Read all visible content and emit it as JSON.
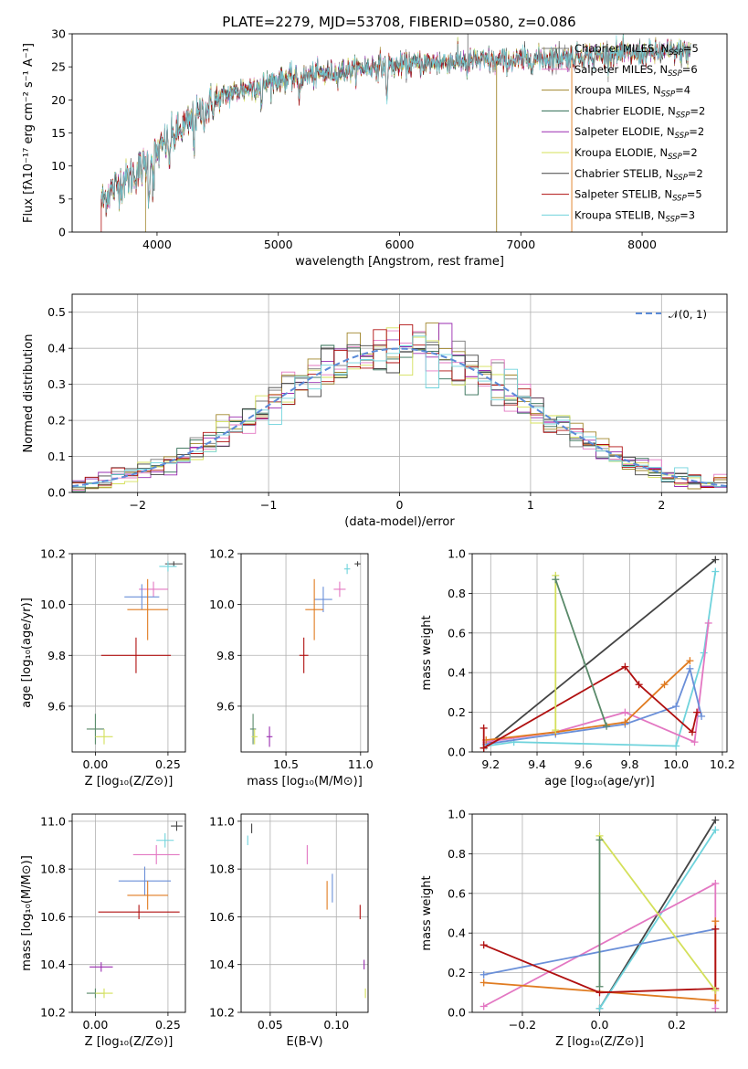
{
  "title": "PLATE=2279, MJD=53708, FIBERID=0580, z=0.086",
  "colors": [
    "#777777",
    "#e377c2",
    "#a0862b",
    "#2e6b52",
    "#9a2db0",
    "#d4e05a",
    "#444444",
    "#b01010",
    "#6fd3dc",
    "#6a8fd8",
    "#e07b20",
    "#5a8a6a"
  ],
  "chart_data": [
    {
      "id": "spectrum",
      "type": "line",
      "xlabel": "wavelength [Angstrom, rest frame]",
      "ylabel": "Flux [fλ10⁻¹⁷ erg cm⁻² s⁻¹ A⁻¹]",
      "xlim": [
        3300,
        8700
      ],
      "ylim": [
        0,
        30
      ],
      "xticks": [
        4000,
        5000,
        6000,
        7000,
        8000
      ],
      "yticks": [
        0,
        5,
        10,
        15,
        20,
        25,
        30
      ],
      "grid": false,
      "legend_position": "top-right",
      "continuum_x": [
        3540,
        3600,
        3700,
        3800,
        3900,
        4000,
        4100,
        4200,
        4300,
        4400,
        4500,
        4600,
        4700,
        4800,
        4900,
        5000,
        5200,
        5400,
        5600,
        5800,
        6000,
        6200,
        6400,
        6600,
        6800,
        7000,
        7200,
        7400,
        7600,
        7800,
        8000,
        8200,
        8400
      ],
      "continuum_y": [
        4.5,
        6,
        7.5,
        8.5,
        10,
        12,
        14,
        15.5,
        17,
        18.5,
        20,
        21,
        21.5,
        22,
        22.5,
        23,
        23.5,
        24,
        24.5,
        25,
        25.2,
        25.5,
        25.8,
        26,
        25.8,
        26,
        26.3,
        26.5,
        26.8,
        27,
        27,
        27.2,
        27.3
      ],
      "series": [
        {
          "name": "Chabrier MILES, N$_{SSP}$=5",
          "label": "Chabrier MILES, N",
          "sub": "SSP",
          "suffix": "=5",
          "color": "#777777"
        },
        {
          "name": "Salpeter MILES, N$_{SSP}$=6",
          "label": "Salpeter MILES, N",
          "sub": "SSP",
          "suffix": "=6",
          "color": "#e377c2"
        },
        {
          "name": "Kroupa MILES, N$_{SSP}$=4",
          "label": "Kroupa MILES, N",
          "sub": "SSP",
          "suffix": "=4",
          "color": "#a0862b"
        },
        {
          "name": "Chabrier ELODIE, N$_{SSP}$=2",
          "label": "Chabrier ELODIE, N",
          "sub": "SSP",
          "suffix": "=2",
          "color": "#2e6b52"
        },
        {
          "name": "Salpeter ELODIE, N$_{SSP}$=2",
          "label": "Salpeter ELODIE, N",
          "sub": "SSP",
          "suffix": "=2",
          "color": "#9a2db0"
        },
        {
          "name": "Kroupa ELODIE, N$_{SSP}$=2",
          "label": "Kroupa ELODIE, N",
          "sub": "SSP",
          "suffix": "=2",
          "color": "#d4e05a"
        },
        {
          "name": "Chabrier STELIB, N$_{SSP}$=2",
          "label": "Chabrier STELIB, N",
          "sub": "SSP",
          "suffix": "=2",
          "color": "#444444"
        },
        {
          "name": "Salpeter STELIB, N$_{SSP}$=5",
          "label": "Salpeter STELIB, N",
          "sub": "SSP",
          "suffix": "=5",
          "color": "#b01010"
        },
        {
          "name": "Kroupa STELIB, N$_{SSP}$=3",
          "label": "Kroupa STELIB, N",
          "sub": "SSP",
          "suffix": "=3",
          "color": "#6fd3dc"
        }
      ]
    },
    {
      "id": "residuals",
      "type": "line",
      "xlabel": "(data-model)/error",
      "ylabel": "Normed distribution",
      "xlim": [
        -2.5,
        2.5
      ],
      "ylim": [
        0,
        0.55
      ],
      "xticks": [
        -2,
        -1,
        0,
        1,
        2
      ],
      "yticks": [
        0.0,
        0.1,
        0.2,
        0.3,
        0.4,
        0.5
      ],
      "grid": true,
      "legend_position": "top-right",
      "legend": "𝒩(0, 1)",
      "normal_color": "#5b8bd8",
      "hist_colors": [
        "#777777",
        "#e377c2",
        "#a0862b",
        "#2e6b52",
        "#9a2db0",
        "#d4e05a",
        "#444444",
        "#b01010",
        "#6fd3dc"
      ]
    },
    {
      "id": "age-vs-Z",
      "type": "scatter",
      "xlabel": "Z [log₁₀(Z/Z⊙)]",
      "ylabel": "age  [log₁₀(age/yr)]",
      "xlim": [
        -0.08,
        0.31
      ],
      "ylim": [
        9.42,
        10.2
      ],
      "xticks": [
        0.0,
        0.25
      ],
      "yticks": [
        9.6,
        9.8,
        10.0,
        10.2
      ],
      "grid": true,
      "points": [
        {
          "x": 0.27,
          "y": 10.16,
          "xerr": 0.03,
          "yerr": 0.01,
          "color": "#444444"
        },
        {
          "x": 0.25,
          "y": 10.15,
          "xerr": 0.03,
          "yerr": 0.02,
          "color": "#6fd3dc"
        },
        {
          "x": 0.2,
          "y": 10.06,
          "xerr": 0.05,
          "yerr": 0.03,
          "color": "#e377c2"
        },
        {
          "x": 0.16,
          "y": 10.03,
          "xerr": 0.06,
          "yerr": 0.05,
          "color": "#6a8fd8"
        },
        {
          "x": 0.18,
          "y": 9.98,
          "xerr": 0.07,
          "yerr": 0.12,
          "color": "#e07b20"
        },
        {
          "x": 0.14,
          "y": 9.8,
          "xerr": 0.12,
          "yerr": 0.07,
          "color": "#b01010"
        },
        {
          "x": 0.0,
          "y": 9.51,
          "xerr": 0.03,
          "yerr": 0.06,
          "color": "#5a8a6a"
        },
        {
          "x": 0.03,
          "y": 9.48,
          "xerr": 0.03,
          "yerr": 0.03,
          "color": "#d4e05a"
        }
      ]
    },
    {
      "id": "age-vs-mass",
      "type": "scatter",
      "xlabel": "mass [log₁₀(M/M⊙)]",
      "ylabel": "",
      "xlim": [
        10.2,
        11.05
      ],
      "ylim": [
        9.42,
        10.2
      ],
      "xticks": [
        10.5,
        11.0
      ],
      "yticks": [
        9.6,
        9.8,
        10.0,
        10.2
      ],
      "grid": true,
      "points": [
        {
          "x": 10.98,
          "y": 10.16,
          "xerr": 0.02,
          "yerr": 0.01,
          "color": "#444444"
        },
        {
          "x": 10.91,
          "y": 10.14,
          "xerr": 0.02,
          "yerr": 0.02,
          "color": "#6fd3dc"
        },
        {
          "x": 10.86,
          "y": 10.06,
          "xerr": 0.04,
          "yerr": 0.03,
          "color": "#e377c2"
        },
        {
          "x": 10.75,
          "y": 10.02,
          "xerr": 0.06,
          "yerr": 0.05,
          "color": "#6a8fd8"
        },
        {
          "x": 10.69,
          "y": 9.98,
          "xerr": 0.06,
          "yerr": 0.12,
          "color": "#e07b20"
        },
        {
          "x": 10.62,
          "y": 9.8,
          "xerr": 0.03,
          "yerr": 0.07,
          "color": "#b01010"
        },
        {
          "x": 10.28,
          "y": 9.51,
          "xerr": 0.02,
          "yerr": 0.06,
          "color": "#5a8a6a"
        },
        {
          "x": 10.39,
          "y": 9.48,
          "xerr": 0.02,
          "yerr": 0.04,
          "color": "#9a2db0"
        },
        {
          "x": 10.29,
          "y": 9.48,
          "xerr": 0.02,
          "yerr": 0.03,
          "color": "#d4e05a"
        }
      ]
    },
    {
      "id": "weight-vs-age",
      "type": "line",
      "xlabel": "age  [log₁₀(age/yr)]",
      "ylabel": "mass weight",
      "xlim": [
        9.12,
        10.22
      ],
      "ylim": [
        0,
        1
      ],
      "xticks": [
        9.2,
        9.4,
        9.6,
        9.8,
        10.0,
        10.2
      ],
      "yticks": [
        0.0,
        0.2,
        0.4,
        0.6,
        0.8,
        1.0
      ],
      "grid": true,
      "series": [
        {
          "color": "#444444",
          "x": [
            9.17,
            10.17
          ],
          "y": [
            0.02,
            0.97
          ]
        },
        {
          "color": "#6fd3dc",
          "x": [
            9.18,
            9.3,
            10.0,
            10.12,
            10.17
          ],
          "y": [
            0.03,
            0.05,
            0.03,
            0.5,
            0.91
          ]
        },
        {
          "color": "#e377c2",
          "x": [
            9.18,
            9.48,
            9.78,
            10.08,
            10.14
          ],
          "y": [
            0.05,
            0.1,
            0.2,
            0.05,
            0.65
          ]
        },
        {
          "color": "#6a8fd8",
          "x": [
            9.18,
            9.48,
            9.78,
            10.0,
            10.06,
            10.11
          ],
          "y": [
            0.04,
            0.09,
            0.14,
            0.23,
            0.42,
            0.18
          ]
        },
        {
          "color": "#e07b20",
          "x": [
            9.18,
            9.48,
            9.78,
            9.95,
            10.06
          ],
          "y": [
            0.06,
            0.1,
            0.15,
            0.34,
            0.46
          ]
        },
        {
          "color": "#b01010",
          "x": [
            9.17,
            9.17,
            9.78,
            9.84,
            10.07,
            10.09
          ],
          "y": [
            0.12,
            0.02,
            0.43,
            0.34,
            0.1,
            0.2
          ]
        },
        {
          "color": "#d4e05a",
          "x": [
            9.48,
            9.48
          ],
          "y": [
            0.11,
            0.89
          ]
        },
        {
          "color": "#5a8a6a",
          "x": [
            9.48,
            9.7
          ],
          "y": [
            0.87,
            0.13
          ]
        }
      ]
    },
    {
      "id": "mass-vs-Z",
      "type": "scatter",
      "xlabel": "Z [log₁₀(Z/Z⊙)]",
      "ylabel": "mass [log₁₀(M/M⊙)]",
      "xlim": [
        -0.08,
        0.31
      ],
      "ylim": [
        10.2,
        11.03
      ],
      "xticks": [
        0.0,
        0.25
      ],
      "yticks": [
        10.2,
        10.4,
        10.6,
        10.8,
        11.0
      ],
      "grid": true,
      "points": [
        {
          "x": 0.28,
          "y": 10.98,
          "xerr": 0.02,
          "yerr": 0.02,
          "color": "#444444"
        },
        {
          "x": 0.24,
          "y": 10.92,
          "xerr": 0.03,
          "yerr": 0.03,
          "color": "#6fd3dc"
        },
        {
          "x": 0.21,
          "y": 10.86,
          "xerr": 0.08,
          "yerr": 0.04,
          "color": "#e377c2"
        },
        {
          "x": 0.17,
          "y": 10.75,
          "xerr": 0.09,
          "yerr": 0.06,
          "color": "#6a8fd8"
        },
        {
          "x": 0.18,
          "y": 10.69,
          "xerr": 0.07,
          "yerr": 0.06,
          "color": "#e07b20"
        },
        {
          "x": 0.15,
          "y": 10.62,
          "xerr": 0.14,
          "yerr": 0.03,
          "color": "#b01010"
        },
        {
          "x": 0.02,
          "y": 10.39,
          "xerr": 0.04,
          "yerr": 0.02,
          "color": "#9a2db0"
        },
        {
          "x": 0.0,
          "y": 10.28,
          "xerr": 0.03,
          "yerr": 0.02,
          "color": "#5a8a6a"
        },
        {
          "x": 0.03,
          "y": 10.28,
          "xerr": 0.03,
          "yerr": 0.02,
          "color": "#d4e05a"
        }
      ]
    },
    {
      "id": "mass-vs-EBV",
      "type": "scatter",
      "xlabel": "E(B-V)",
      "ylabel": "",
      "xlim": [
        0.028,
        0.124
      ],
      "ylim": [
        10.2,
        11.03
      ],
      "xticks": [
        0.05,
        0.1
      ],
      "yticks": [
        10.2,
        10.4,
        10.6,
        10.8,
        11.0
      ],
      "grid": true,
      "points": [
        {
          "x": 0.036,
          "y": 10.97,
          "xerr": 0.0,
          "yerr": 0.02,
          "color": "#444444"
        },
        {
          "x": 0.033,
          "y": 10.92,
          "xerr": 0.0,
          "yerr": 0.02,
          "color": "#6fd3dc"
        },
        {
          "x": 0.078,
          "y": 10.86,
          "xerr": 0.0,
          "yerr": 0.04,
          "color": "#e377c2"
        },
        {
          "x": 0.097,
          "y": 10.72,
          "xerr": 0.0,
          "yerr": 0.06,
          "color": "#6a8fd8"
        },
        {
          "x": 0.093,
          "y": 10.69,
          "xerr": 0.0,
          "yerr": 0.06,
          "color": "#e07b20"
        },
        {
          "x": 0.118,
          "y": 10.62,
          "xerr": 0.0,
          "yerr": 0.03,
          "color": "#b01010"
        },
        {
          "x": 0.121,
          "y": 10.4,
          "xerr": 0.0,
          "yerr": 0.02,
          "color": "#9a2db0"
        },
        {
          "x": 0.122,
          "y": 10.28,
          "xerr": 0.0,
          "yerr": 0.02,
          "color": "#d4e05a"
        }
      ]
    },
    {
      "id": "weight-vs-Z",
      "type": "line",
      "xlabel": "Z [log₁₀(Z/Z⊙)]",
      "ylabel": "mass weight",
      "xlim": [
        -0.33,
        0.33
      ],
      "ylim": [
        0,
        1
      ],
      "xticks": [
        -0.2,
        0.0,
        0.2
      ],
      "yticks": [
        0.0,
        0.2,
        0.4,
        0.6,
        0.8,
        1.0
      ],
      "grid": true,
      "series": [
        {
          "color": "#444444",
          "x": [
            0.0,
            0.3
          ],
          "y": [
            0.02,
            0.97
          ]
        },
        {
          "color": "#6fd3dc",
          "x": [
            0.0,
            0.3
          ],
          "y": [
            0.02,
            0.92
          ]
        },
        {
          "color": "#e377c2",
          "x": [
            -0.3,
            0.3,
            0.3
          ],
          "y": [
            0.03,
            0.65,
            0.02
          ]
        },
        {
          "color": "#6a8fd8",
          "x": [
            -0.3,
            0.3
          ],
          "y": [
            0.19,
            0.42
          ]
        },
        {
          "color": "#e07b20",
          "x": [
            -0.3,
            0.3,
            0.3
          ],
          "y": [
            0.15,
            0.06,
            0.46
          ]
        },
        {
          "color": "#b01010",
          "x": [
            -0.3,
            0.0,
            0.3,
            0.3
          ],
          "y": [
            0.34,
            0.1,
            0.12,
            0.42
          ]
        },
        {
          "color": "#d4e05a",
          "x": [
            0.0,
            0.3
          ],
          "y": [
            0.89,
            0.11
          ]
        },
        {
          "color": "#5a8a6a",
          "x": [
            0.0,
            0.0
          ],
          "y": [
            0.13,
            0.87
          ]
        }
      ]
    }
  ]
}
